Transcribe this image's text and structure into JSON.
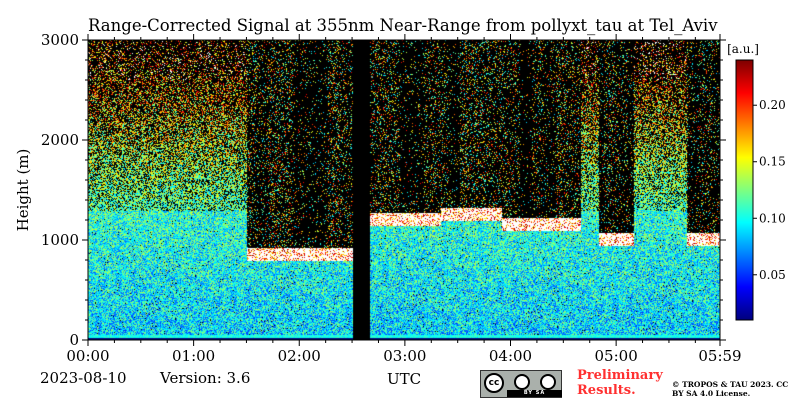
{
  "chart_data": {
    "type": "heatmap",
    "title": "Range-Corrected Signal at 355nm Near-Range from pollyxt_tau at Tel_Aviv",
    "xlabel": "UTC",
    "ylabel": "Height (m)",
    "x_ticks": [
      "00:00",
      "01:00",
      "02:00",
      "03:00",
      "04:00",
      "05:00",
      "05:59"
    ],
    "x_tick_minutes": [
      0,
      60,
      120,
      180,
      240,
      300,
      359
    ],
    "xlim_minutes": [
      0,
      359
    ],
    "y_ticks": [
      "0",
      "1000",
      "2000",
      "3000"
    ],
    "y_tick_values": [
      0,
      1000,
      2000,
      3000
    ],
    "ylim": [
      0,
      3000
    ],
    "colorbar": {
      "label": "[a.u.]",
      "ticks": [
        "0.05",
        "0.10",
        "0.15",
        "0.20"
      ],
      "tick_values": [
        0.05,
        0.1,
        0.15,
        0.2
      ],
      "range": [
        0.01,
        0.24
      ],
      "colormap": "jet"
    },
    "no_data_intervals_minutes": [
      [
        150,
        160
      ]
    ],
    "cloud_layers": [
      {
        "start_min": 90,
        "end_min": 150,
        "base_m": 800,
        "top_m": 1000
      },
      {
        "start_min": 160,
        "end_min": 200,
        "base_m": 1150,
        "top_m": 1300
      },
      {
        "start_min": 200,
        "end_min": 235,
        "base_m": 1200,
        "top_m": 1300
      },
      {
        "start_min": 225,
        "end_min": 280,
        "base_m": 1100,
        "top_m": 1250
      },
      {
        "start_min": 290,
        "end_min": 310,
        "base_m": 950,
        "top_m": 1150
      },
      {
        "start_min": 340,
        "end_min": 359,
        "base_m": 950,
        "top_m": 1200
      }
    ],
    "boundary_layer_top_m": 1300
  },
  "footer": {
    "date": "2023-08-10",
    "version": "Version: 3.6",
    "preliminary": "Preliminary Results.",
    "copyright": "© TROPOS & TAU 2023. CC BY SA 4.0 License.",
    "license_strip": "BY SA"
  },
  "colors": {
    "nodata": "#000000",
    "cloud": "#ffffff",
    "title_accent": "#ff3030"
  }
}
